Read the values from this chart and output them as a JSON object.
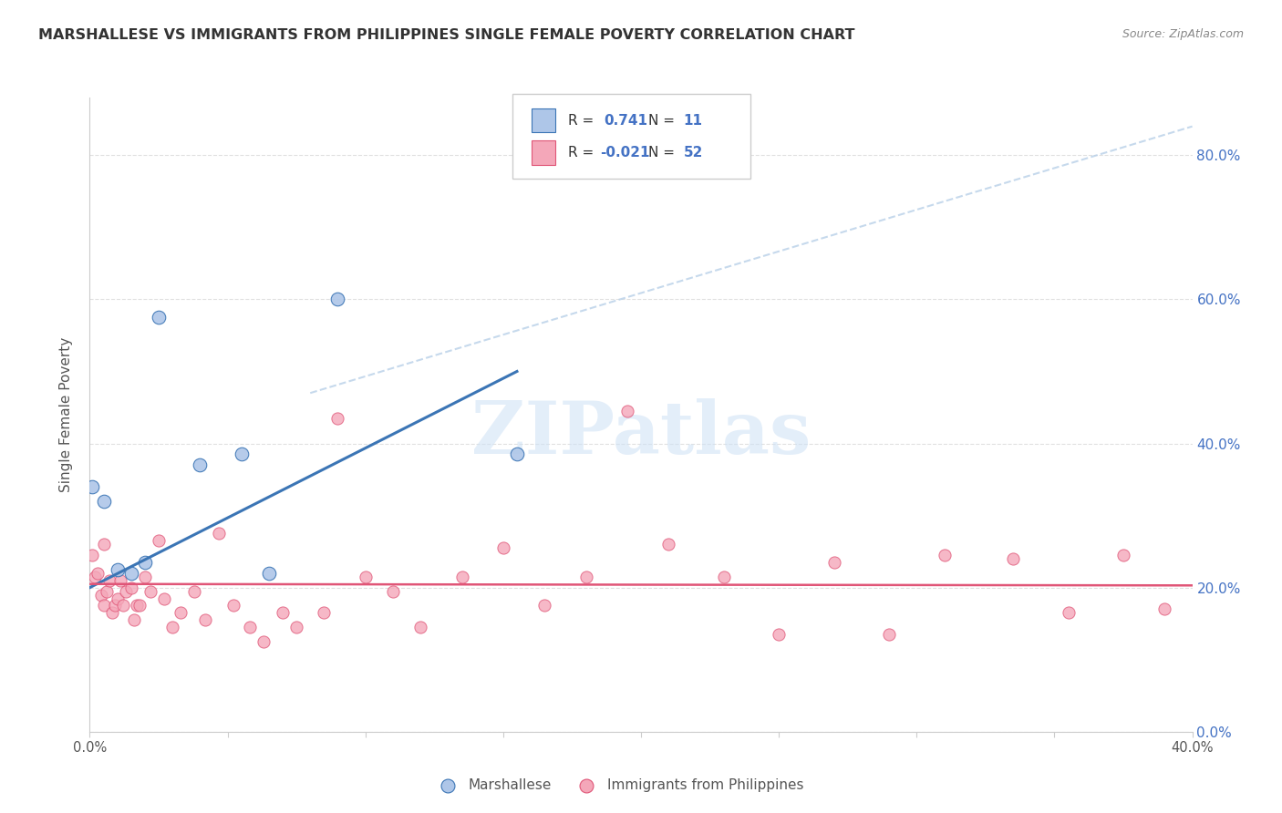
{
  "title": "MARSHALLESE VS IMMIGRANTS FROM PHILIPPINES SINGLE FEMALE POVERTY CORRELATION CHART",
  "source": "Source: ZipAtlas.com",
  "ylabel": "Single Female Poverty",
  "ytick_values": [
    0.0,
    0.2,
    0.4,
    0.6,
    0.8
  ],
  "xlim": [
    0.0,
    0.4
  ],
  "ylim": [
    0.0,
    0.88
  ],
  "legend_color1": "#aec6e8",
  "legend_color2": "#f4a7b9",
  "blue_scatter_x": [
    0.001,
    0.005,
    0.01,
    0.015,
    0.02,
    0.025,
    0.04,
    0.055,
    0.065,
    0.09,
    0.155
  ],
  "blue_scatter_y": [
    0.34,
    0.32,
    0.225,
    0.22,
    0.235,
    0.575,
    0.37,
    0.385,
    0.22,
    0.6,
    0.385
  ],
  "pink_scatter_x": [
    0.001,
    0.002,
    0.003,
    0.004,
    0.005,
    0.006,
    0.007,
    0.008,
    0.009,
    0.01,
    0.011,
    0.012,
    0.013,
    0.015,
    0.016,
    0.017,
    0.018,
    0.02,
    0.022,
    0.025,
    0.027,
    0.03,
    0.033,
    0.038,
    0.042,
    0.047,
    0.052,
    0.058,
    0.063,
    0.07,
    0.075,
    0.085,
    0.09,
    0.1,
    0.11,
    0.12,
    0.135,
    0.15,
    0.165,
    0.18,
    0.195,
    0.21,
    0.23,
    0.25,
    0.27,
    0.29,
    0.31,
    0.335,
    0.355,
    0.375,
    0.39,
    0.005
  ],
  "pink_scatter_y": [
    0.245,
    0.215,
    0.22,
    0.19,
    0.175,
    0.195,
    0.21,
    0.165,
    0.175,
    0.185,
    0.21,
    0.175,
    0.195,
    0.2,
    0.155,
    0.175,
    0.175,
    0.215,
    0.195,
    0.265,
    0.185,
    0.145,
    0.165,
    0.195,
    0.155,
    0.275,
    0.175,
    0.145,
    0.125,
    0.165,
    0.145,
    0.165,
    0.435,
    0.215,
    0.195,
    0.145,
    0.215,
    0.255,
    0.175,
    0.215,
    0.445,
    0.26,
    0.215,
    0.135,
    0.235,
    0.135,
    0.245,
    0.24,
    0.165,
    0.245,
    0.17,
    0.26
  ],
  "blue_line_x": [
    0.0,
    0.155
  ],
  "blue_line_y": [
    0.2,
    0.5
  ],
  "dashed_line_x": [
    0.08,
    0.4
  ],
  "dashed_line_y": [
    0.47,
    0.84
  ],
  "pink_line_y_intercept": 0.205,
  "pink_line_slope": -0.005,
  "blue_line_color": "#3b75b5",
  "pink_line_color": "#e05577",
  "dashed_line_color": "#b8d0e8",
  "watermark_text": "ZIPatlas",
  "grid_color": "#e0e0e0",
  "background_color": "#ffffff"
}
